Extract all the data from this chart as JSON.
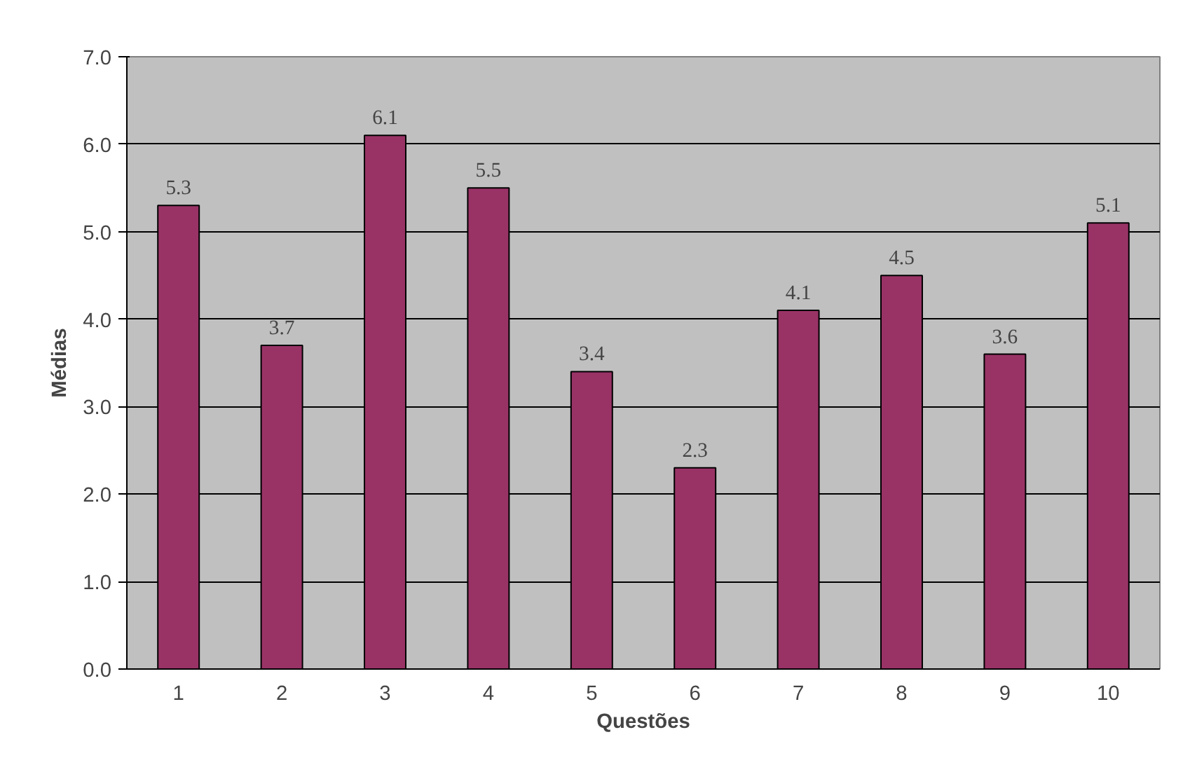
{
  "chart_data": {
    "type": "bar",
    "xlabel": "Questões",
    "ylabel": "Médias",
    "categories": [
      "1",
      "2",
      "3",
      "4",
      "5",
      "6",
      "7",
      "8",
      "9",
      "10"
    ],
    "values": [
      5.3,
      3.7,
      6.1,
      5.5,
      3.4,
      2.3,
      4.1,
      4.5,
      3.6,
      5.1
    ],
    "color": "#993366",
    "ylim": [
      0,
      7
    ],
    "yticks": [
      {
        "value": 0,
        "label": "0.0"
      },
      {
        "value": 1,
        "label": "1.0"
      },
      {
        "value": 2,
        "label": "2.0"
      },
      {
        "value": 3,
        "label": "3.0"
      },
      {
        "value": 4,
        "label": "4.0"
      },
      {
        "value": 5,
        "label": "5.0"
      },
      {
        "value": 6,
        "label": "6.0"
      },
      {
        "value": 7,
        "label": "7.0"
      }
    ],
    "grid": "y",
    "data_labels": true
  }
}
